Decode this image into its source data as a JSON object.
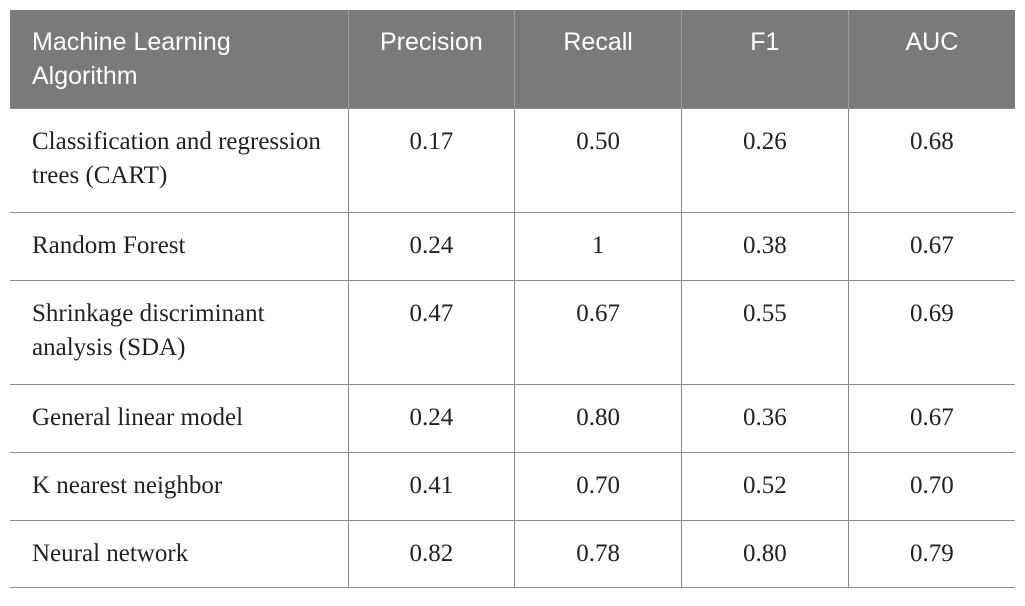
{
  "table": {
    "headers": [
      "Machine Learning Algorithm",
      "Precision",
      "Recall",
      "F1",
      "AUC"
    ],
    "rows": [
      {
        "algorithm": "Classification and regression trees (CART)",
        "precision": "0.17",
        "recall": "0.50",
        "f1": "0.26",
        "auc": "0.68"
      },
      {
        "algorithm": "Random Forest",
        "precision": "0.24",
        "recall": "1",
        "f1": "0.38",
        "auc": "0.67"
      },
      {
        "algorithm": "Shrinkage discriminant analysis (SDA)",
        "precision": "0.47",
        "recall": "0.67",
        "f1": "0.55",
        "auc": "0.69"
      },
      {
        "algorithm": "General linear model",
        "precision": "0.24",
        "recall": "0.80",
        "f1": "0.36",
        "auc": "0.67"
      },
      {
        "algorithm": "K nearest neighbor",
        "precision": "0.41",
        "recall": "0.70",
        "f1": "0.52",
        "auc": "0.70"
      },
      {
        "algorithm": "Neural network",
        "precision": "0.82",
        "recall": "0.78",
        "f1": "0.80",
        "auc": "0.79"
      }
    ]
  }
}
